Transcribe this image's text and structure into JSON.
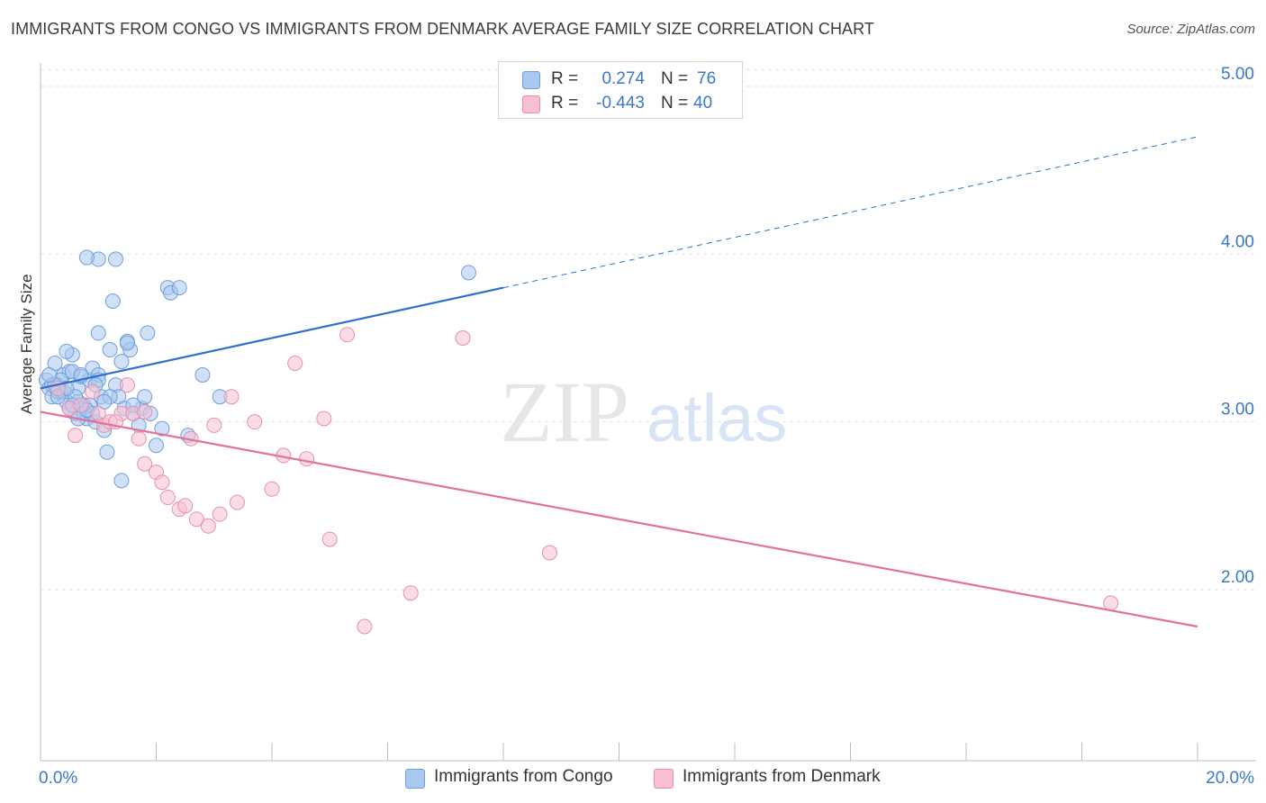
{
  "title": "IMMIGRANTS FROM CONGO VS IMMIGRANTS FROM DENMARK AVERAGE FAMILY SIZE CORRELATION CHART",
  "source": "Source: ZipAtlas.com",
  "watermark": {
    "zip": "ZIP",
    "atlas": "atlas"
  },
  "legend": {
    "r_label": "R =",
    "n_label": "N =",
    "rows": [
      {
        "r": "0.274",
        "n": "76",
        "color": "#a9c8f0",
        "border": "#6f9fd9"
      },
      {
        "r": "-0.443",
        "n": "40",
        "color": "#f6c0d2",
        "border": "#e98fae"
      }
    ]
  },
  "chart_data": {
    "type": "scatter",
    "title": "IMMIGRANTS FROM CONGO VS IMMIGRANTS FROM DENMARK AVERAGE FAMILY SIZE CORRELATION CHART",
    "xlabel": "",
    "ylabel": "Average Family Size",
    "xlim": [
      0,
      20
    ],
    "ylim": [
      1,
      5.15
    ],
    "x_tick_labels": [
      "0.0%",
      "20.0%"
    ],
    "y_ticks": [
      2,
      3,
      4,
      5
    ],
    "y_tick_labels": [
      "2.00",
      "3.00",
      "4.00",
      "5.00"
    ],
    "grid": true,
    "series": [
      {
        "name": "Immigrants from Congo",
        "color": "#6f9fd9",
        "fill": "#a9c8f0",
        "trend": {
          "x0": 0,
          "y0": 3.2,
          "x1": 8,
          "y1": 3.8,
          "dash_to_x": 20,
          "dash_to_y": 4.7,
          "color": "#2e6fcf"
        },
        "points": [
          [
            0.1,
            3.25
          ],
          [
            0.15,
            3.2
          ],
          [
            0.2,
            3.15
          ],
          [
            0.25,
            3.35
          ],
          [
            0.3,
            3.22
          ],
          [
            0.35,
            3.18
          ],
          [
            0.4,
            3.28
          ],
          [
            0.45,
            3.12
          ],
          [
            0.5,
            3.3
          ],
          [
            0.55,
            3.4
          ],
          [
            0.6,
            3.05
          ],
          [
            0.65,
            3.2
          ],
          [
            0.7,
            3.27
          ],
          [
            0.75,
            3.1
          ],
          [
            0.8,
            3.02
          ],
          [
            0.85,
            3.25
          ],
          [
            0.9,
            3.32
          ],
          [
            0.95,
            3.0
          ],
          [
            1.0,
            3.28
          ],
          [
            1.05,
            3.15
          ],
          [
            1.1,
            2.95
          ],
          [
            1.15,
            2.82
          ],
          [
            1.2,
            3.43
          ],
          [
            1.25,
            3.72
          ],
          [
            1.3,
            3.22
          ],
          [
            1.35,
            3.15
          ],
          [
            1.4,
            3.36
          ],
          [
            1.45,
            3.08
          ],
          [
            1.5,
            3.48
          ],
          [
            1.55,
            3.43
          ],
          [
            1.6,
            3.05
          ],
          [
            1.7,
            2.98
          ],
          [
            1.75,
            3.08
          ],
          [
            1.8,
            3.15
          ],
          [
            1.85,
            3.53
          ],
          [
            1.9,
            3.05
          ],
          [
            2.0,
            2.86
          ],
          [
            2.1,
            2.96
          ],
          [
            2.2,
            3.8
          ],
          [
            2.25,
            3.77
          ],
          [
            2.4,
            3.8
          ],
          [
            2.55,
            2.92
          ],
          [
            1.0,
            3.97
          ],
          [
            0.8,
            3.98
          ],
          [
            1.3,
            3.97
          ],
          [
            1.0,
            3.53
          ],
          [
            1.5,
            3.47
          ],
          [
            0.45,
            3.42
          ],
          [
            0.3,
            3.18
          ],
          [
            0.2,
            3.22
          ],
          [
            0.55,
            3.3
          ],
          [
            0.65,
            3.12
          ],
          [
            0.75,
            3.05
          ],
          [
            0.85,
            3.1
          ],
          [
            0.4,
            3.18
          ],
          [
            0.5,
            3.08
          ],
          [
            0.6,
            3.15
          ],
          [
            0.7,
            3.28
          ],
          [
            0.9,
            3.05
          ],
          [
            1.0,
            3.25
          ],
          [
            1.2,
            3.15
          ],
          [
            0.35,
            3.25
          ],
          [
            0.25,
            3.22
          ],
          [
            0.15,
            3.28
          ],
          [
            0.45,
            3.2
          ],
          [
            0.55,
            3.1
          ],
          [
            0.65,
            3.02
          ],
          [
            0.8,
            3.07
          ],
          [
            0.95,
            3.22
          ],
          [
            1.1,
            3.12
          ],
          [
            1.4,
            2.65
          ],
          [
            2.8,
            3.28
          ],
          [
            3.1,
            3.15
          ],
          [
            7.4,
            3.89
          ],
          [
            1.6,
            3.1
          ],
          [
            0.3,
            3.15
          ]
        ]
      },
      {
        "name": "Immigrants from Denmark",
        "color": "#e98fae",
        "fill": "#f6c0d2",
        "trend": {
          "x0": 0,
          "y0": 3.06,
          "x1": 20,
          "y1": 1.78,
          "color": "#e2719c"
        },
        "points": [
          [
            0.3,
            3.2
          ],
          [
            0.5,
            3.08
          ],
          [
            0.7,
            3.1
          ],
          [
            0.9,
            3.18
          ],
          [
            1.0,
            3.05
          ],
          [
            1.1,
            2.98
          ],
          [
            1.2,
            3.0
          ],
          [
            1.4,
            3.05
          ],
          [
            1.5,
            3.22
          ],
          [
            1.6,
            3.05
          ],
          [
            1.7,
            2.9
          ],
          [
            1.8,
            2.75
          ],
          [
            2.0,
            2.7
          ],
          [
            2.1,
            2.64
          ],
          [
            2.2,
            2.55
          ],
          [
            2.4,
            2.48
          ],
          [
            2.5,
            2.5
          ],
          [
            2.7,
            2.42
          ],
          [
            2.9,
            2.38
          ],
          [
            3.1,
            2.45
          ],
          [
            3.4,
            2.52
          ],
          [
            3.7,
            3.0
          ],
          [
            4.0,
            2.6
          ],
          [
            4.2,
            2.8
          ],
          [
            4.4,
            3.35
          ],
          [
            4.6,
            2.78
          ],
          [
            5.0,
            2.3
          ],
          [
            5.3,
            3.52
          ],
          [
            6.4,
            1.98
          ],
          [
            7.3,
            3.5
          ],
          [
            8.8,
            2.22
          ],
          [
            4.9,
            3.02
          ],
          [
            3.3,
            3.15
          ],
          [
            2.6,
            2.9
          ],
          [
            0.6,
            2.92
          ],
          [
            1.3,
            3.0
          ],
          [
            1.8,
            3.06
          ],
          [
            3.0,
            2.98
          ],
          [
            5.6,
            1.78
          ],
          [
            18.5,
            1.92
          ]
        ]
      }
    ]
  },
  "bottom_legend": [
    {
      "label": "Immigrants from Congo"
    },
    {
      "label": "Immigrants from Denmark"
    }
  ]
}
